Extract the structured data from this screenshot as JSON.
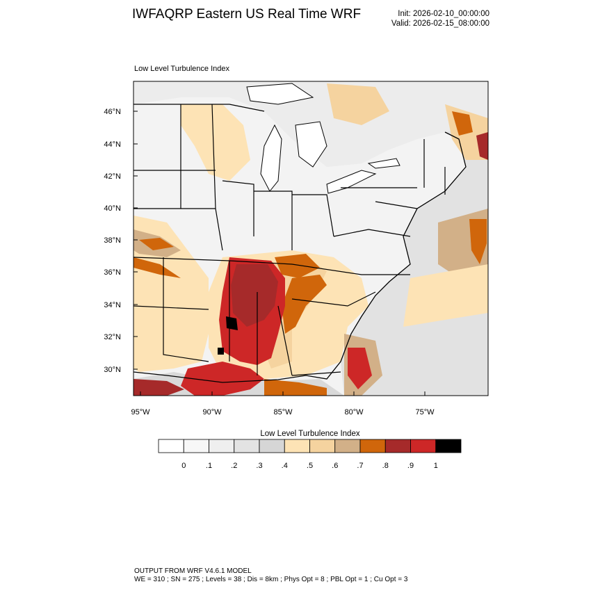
{
  "header": {
    "title": "IWFAQRP Eastern US Real Time WRF",
    "init": "Init: 2026-02-10_00:00:00",
    "valid": "Valid: 2026-02-15_08:00:00"
  },
  "map": {
    "subtitle": "Low Level Turbulence Index",
    "lat_labels": [
      "46°N",
      "44°N",
      "42°N",
      "40°N",
      "38°N",
      "36°N",
      "34°N",
      "32°N",
      "30°N"
    ],
    "lon_labels": [
      "95°W",
      "90°W",
      "85°W",
      "80°W",
      "75°W"
    ],
    "colors": {
      "ocean": "#e2e2e2",
      "land_low": "#f3f3f3",
      "lake": "#ffffff",
      "tan_light": "#fde3b5",
      "tan": "#f5d39f",
      "brown_light": "#d2b088",
      "orange": "#d0660b",
      "red_dark": "#a62a2a",
      "red": "#cd2727",
      "black": "#000000"
    }
  },
  "colorbar": {
    "title": "Low Level Turbulence Index",
    "labels": [
      "0",
      ".1",
      ".2",
      ".3",
      ".4",
      ".5",
      ".6",
      ".7",
      ".8",
      ".9",
      "1"
    ],
    "colors": [
      "#ffffff",
      "#f7f7f7",
      "#efefef",
      "#e3e3e3",
      "#d6d6d6",
      "#fde3b5",
      "#f5d39f",
      "#d2b088",
      "#d0660b",
      "#a62a2a",
      "#cd2727",
      "#000000"
    ]
  },
  "footer": {
    "line1": "OUTPUT FROM WRF V4.6.1 MODEL",
    "line2": "WE = 310 ; SN = 275 ; Levels = 38 ; Dis = 8km ; Phys Opt = 8 ; PBL Opt = 1 ; Cu Opt = 3"
  }
}
